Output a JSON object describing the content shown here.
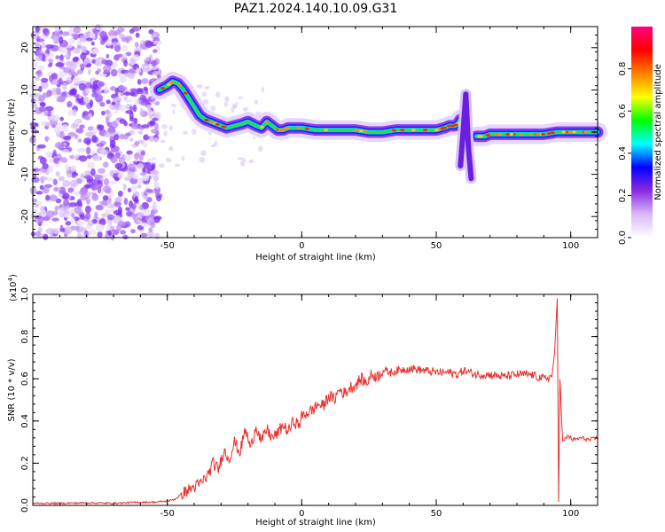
{
  "title": "PAZ1.2024.140.10.09.G31",
  "chart_data": [
    {
      "type": "heatmap",
      "xlabel": "Height of straight line (km)",
      "ylabel": "Frequency (Hz)",
      "xlim": [
        -100,
        110
      ],
      "ylim": [
        -25,
        25
      ],
      "xticks": [
        -50,
        0,
        50,
        100
      ],
      "xtick_labels": [
        "-50",
        "0",
        "50",
        "100"
      ],
      "yticks": [
        -20,
        -10,
        0,
        10,
        20
      ],
      "ytick_labels": [
        "-20",
        "-10",
        "0",
        "10",
        "20"
      ],
      "colorbar": {
        "label": "Normalized spectral amplitude",
        "range": [
          0.0,
          1.0
        ],
        "ticks": [
          0.0,
          0.2,
          0.4,
          0.6,
          0.8
        ],
        "tick_labels": [
          "0.0",
          "0.2",
          "0.4",
          "0.6",
          "0.8"
        ],
        "colors": [
          "#ffffff",
          "#d8b8f8",
          "#8a2be2",
          "#0000ff",
          "#00ffff",
          "#00ff00",
          "#ffff00",
          "#ff8000",
          "#ff0000",
          "#ff0080"
        ]
      },
      "ridge": {
        "x": [
          -53,
          -50,
          -48,
          -46,
          -44,
          -42,
          -40,
          -38,
          -36,
          -34,
          -32,
          -30,
          -28,
          -25,
          -22,
          -20,
          -17,
          -15,
          -13,
          -11,
          -9,
          -7,
          -5,
          -2,
          0,
          5,
          10,
          15,
          20,
          25,
          30,
          35,
          40,
          45,
          50,
          53,
          55,
          57,
          58,
          59
        ],
        "y": [
          10,
          11,
          12,
          11.5,
          10,
          8,
          6,
          4,
          3,
          2.5,
          2,
          1.5,
          1,
          1.5,
          2,
          2.5,
          1.5,
          1,
          2.5,
          1.5,
          0.5,
          0.5,
          1,
          1,
          1,
          0.5,
          0.5,
          0.5,
          0.5,
          0,
          0,
          0.5,
          0.5,
          0.5,
          0.5,
          1,
          1.5,
          1.5,
          2,
          3
        ]
      },
      "fade": {
        "x": [
          59,
          60,
          61,
          62,
          63
        ],
        "y": [
          -8,
          0,
          9,
          -4,
          -11
        ]
      },
      "ridge2": {
        "x": [
          65,
          68,
          70,
          75,
          80,
          85,
          90,
          95,
          100,
          105,
          110
        ],
        "y": [
          -1,
          -1,
          -0.5,
          -0.5,
          -0.5,
          -0.5,
          -0.5,
          0,
          0,
          0,
          0
        ]
      },
      "noise_region": [
        -100,
        -53
      ]
    },
    {
      "type": "line",
      "xlabel": "Height of straight line (km)",
      "ylabel": "SNR (10 * v/v)",
      "y_multiplier": "(x10",
      "y_multiplier_exp": "4",
      "y_multiplier_close": ")",
      "xlim": [
        -100,
        110
      ],
      "ylim": [
        0,
        1.0
      ],
      "xticks": [
        -50,
        0,
        50,
        100
      ],
      "xtick_labels": [
        "-50",
        "0",
        "50",
        "100"
      ],
      "yticks": [
        0.0,
        0.2,
        0.4,
        0.6,
        0.8,
        1.0
      ],
      "ytick_labels": [
        "0.0",
        "0.2",
        "0.4",
        "0.6",
        "0.8",
        "1.0"
      ],
      "color": "#e8302e",
      "series": [
        {
          "x": [
            -100,
            -90,
            -80,
            -70,
            -60,
            -55,
            -50,
            -47,
            -44,
            -41,
            -38,
            -35,
            -33,
            -31,
            -29,
            -27,
            -25,
            -23,
            -21,
            -19,
            -17,
            -15,
            -13,
            -11,
            -9,
            -7,
            -5,
            -3,
            -1,
            0,
            2,
            4,
            6,
            8,
            10,
            12,
            14,
            16,
            18,
            20,
            22,
            24,
            26,
            28,
            30,
            33,
            36,
            40,
            45,
            50,
            55,
            58,
            60,
            65,
            70,
            75,
            80,
            85,
            90,
            93,
            94,
            95,
            95.5,
            96,
            97,
            99,
            101,
            104,
            107,
            110
          ],
          "y": [
            0.01,
            0.01,
            0.012,
            0.01,
            0.015,
            0.015,
            0.02,
            0.03,
            0.06,
            0.08,
            0.1,
            0.14,
            0.2,
            0.17,
            0.26,
            0.22,
            0.3,
            0.25,
            0.36,
            0.27,
            0.38,
            0.3,
            0.36,
            0.32,
            0.34,
            0.38,
            0.35,
            0.4,
            0.38,
            0.42,
            0.44,
            0.45,
            0.48,
            0.47,
            0.52,
            0.5,
            0.55,
            0.53,
            0.56,
            0.57,
            0.6,
            0.58,
            0.62,
            0.61,
            0.64,
            0.63,
            0.64,
            0.65,
            0.64,
            0.63,
            0.63,
            0.62,
            0.64,
            0.62,
            0.62,
            0.61,
            0.62,
            0.62,
            0.6,
            0.61,
            0.72,
            0.98,
            0.02,
            0.6,
            0.3,
            0.33,
            0.31,
            0.32,
            0.31,
            0.32
          ]
        }
      ]
    }
  ]
}
